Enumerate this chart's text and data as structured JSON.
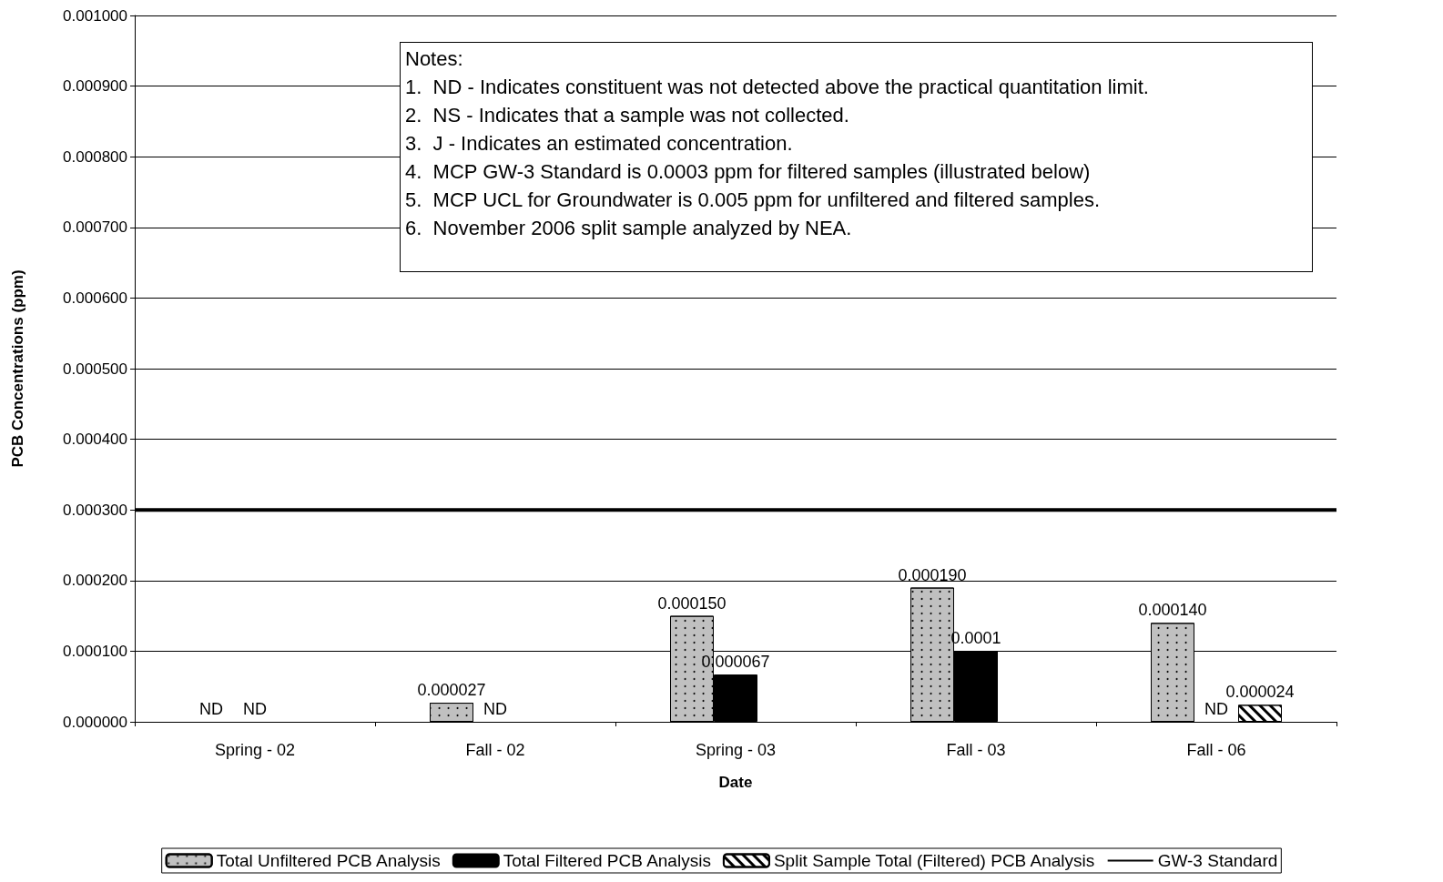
{
  "chart_data": {
    "type": "bar",
    "xlabel": "Date",
    "ylabel": "PCB Concentrations (ppm)",
    "categories": [
      "Spring - 02",
      "Fall - 02",
      "Spring - 03",
      "Fall - 03",
      "Fall - 06"
    ],
    "series": [
      {
        "name": "Total Unfiltered PCB Analysis",
        "color": "#c0c0c0",
        "values": [
          null,
          2.7e-05,
          0.00015,
          0.00019,
          0.00014
        ],
        "value_labels": [
          "ND",
          "0.000027",
          "0.000150",
          "0.000190",
          "0.000140"
        ]
      },
      {
        "name": "Total Filtered PCB Analysis",
        "color": "#000000",
        "values": [
          null,
          null,
          6.7e-05,
          0.0001,
          null
        ],
        "value_labels": [
          "ND",
          "ND",
          "0.000067",
          "0.0001",
          "ND"
        ]
      },
      {
        "name": "Split Sample Total (Filtered) PCB Analysis",
        "color": "#ffffff",
        "values": [
          null,
          null,
          null,
          null,
          2.4e-05
        ],
        "value_labels": [
          null,
          null,
          null,
          null,
          "0.000024"
        ]
      }
    ],
    "ref_lines": [
      {
        "axis": "y",
        "value": 0.0003,
        "label": "GW-3 Standard",
        "color": "#000000"
      }
    ],
    "ylim": [
      0,
      0.001
    ],
    "yticks": [
      {
        "value": 0,
        "label": "0.000000"
      },
      {
        "value": 0.0001,
        "label": "0.000100"
      },
      {
        "value": 0.0002,
        "label": "0.000200"
      },
      {
        "value": 0.0003,
        "label": "0.000300"
      },
      {
        "value": 0.0004,
        "label": "0.000400"
      },
      {
        "value": 0.0005,
        "label": "0.000500"
      },
      {
        "value": 0.0006,
        "label": "0.000600"
      },
      {
        "value": 0.0007,
        "label": "0.000700"
      },
      {
        "value": 0.0008,
        "label": "0.000800"
      },
      {
        "value": 0.0009,
        "label": "0.000900"
      },
      {
        "value": 0.001,
        "label": "0.001000"
      }
    ],
    "grid": "y",
    "legend": "bottom",
    "annotations": [
      "Notes:",
      "1.  ND - Indicates constituent was not detected above the practical quantitation limit.",
      "2.  NS - Indicates that a sample was not collected.",
      "3.  J - Indicates an estimated concentration.",
      "4.  MCP GW-3 Standard is 0.0003 ppm for filtered samples (illustrated below)",
      "5.  MCP UCL for Groundwater is 0.005 ppm for unfiltered and filtered samples.",
      "6.  November 2006 split sample analyzed by NEA."
    ]
  }
}
